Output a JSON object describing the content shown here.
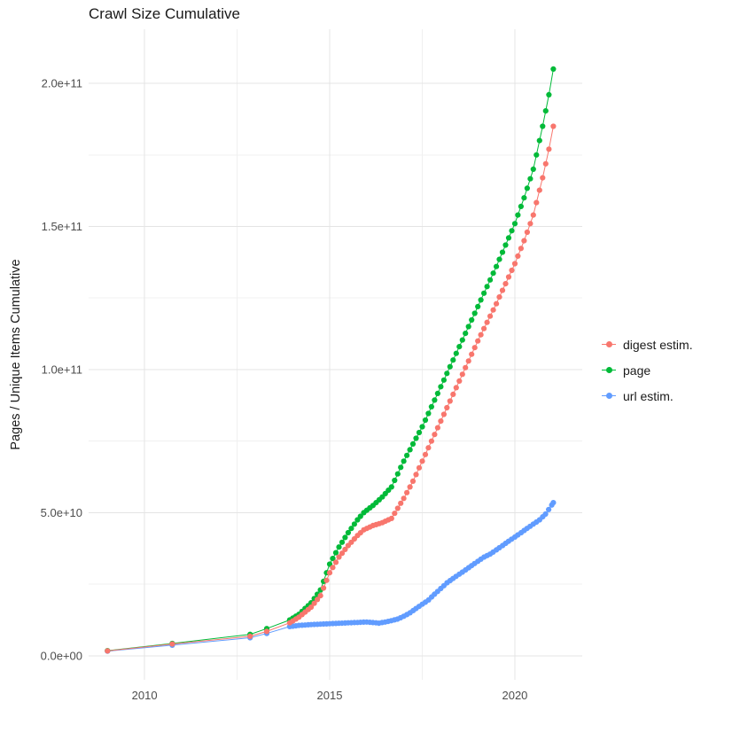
{
  "chart_data": {
    "type": "scatter",
    "title": "Crawl Size Cumulative",
    "xlabel": "",
    "ylabel": "Pages / Unique Items Cumulative",
    "legend_position": "right",
    "grid": "on",
    "value_unit": "1e9 (billions of pages / items)",
    "axis_ranges": {
      "x": [
        2008.49,
        2021.82
      ],
      "y_e9": [
        -8.4,
        218.9
      ]
    },
    "x_ticks": [
      {
        "value": 2010,
        "label": "2010"
      },
      {
        "value": 2015,
        "label": "2015"
      },
      {
        "value": 2020,
        "label": "2020"
      }
    ],
    "y_ticks": [
      {
        "value_e9": 0,
        "label": "0.0e+00"
      },
      {
        "value_e9": 50,
        "label": "5.0e+10"
      },
      {
        "value_e9": 100,
        "label": "1.0e+11"
      },
      {
        "value_e9": 150,
        "label": "1.5e+11"
      },
      {
        "value_e9": 200,
        "label": "2.0e+11"
      }
    ],
    "grid_minor": {
      "x": [
        2012.5,
        2017.5
      ],
      "y_e9": [
        25,
        75,
        125,
        175
      ]
    },
    "colors": {
      "grid_major": "#e4e4e4",
      "grid_minor": "#f0f0f0",
      "tick_label": "#4d4d4d"
    },
    "render": {
      "point_step_years": 0.0833,
      "densify_from_year": 2013.9,
      "point_radius": 3.1,
      "line_width": 1
    },
    "series": [
      {
        "label": "digest estim.",
        "color": "#F8766D",
        "points_year_e9": [
          [
            2009.0,
            1.7
          ],
          [
            2010.75,
            4.1
          ],
          [
            2012.85,
            6.8
          ],
          [
            2013.3,
            8.5
          ],
          [
            2013.92,
            11.5
          ],
          [
            2014.17,
            13.5
          ],
          [
            2014.5,
            17
          ],
          [
            2014.75,
            21
          ],
          [
            2015.0,
            29
          ],
          [
            2015.25,
            34.5
          ],
          [
            2015.5,
            38.5
          ],
          [
            2015.75,
            42
          ],
          [
            2015.92,
            44
          ],
          [
            2016.17,
            45.5
          ],
          [
            2016.42,
            46.5
          ],
          [
            2016.67,
            48
          ],
          [
            2017.0,
            55
          ],
          [
            2017.25,
            61
          ],
          [
            2017.5,
            68
          ],
          [
            2017.75,
            75
          ],
          [
            2018.0,
            82
          ],
          [
            2018.25,
            89
          ],
          [
            2018.5,
            96
          ],
          [
            2018.75,
            103
          ],
          [
            2019.0,
            110
          ],
          [
            2019.25,
            116.5
          ],
          [
            2019.5,
            123
          ],
          [
            2019.75,
            130
          ],
          [
            2020.0,
            137
          ],
          [
            2020.25,
            145
          ],
          [
            2020.5,
            154
          ],
          [
            2020.75,
            167
          ],
          [
            2020.92,
            177
          ],
          [
            2021.04,
            185
          ]
        ]
      },
      {
        "label": "page",
        "color": "#00BA38",
        "points_year_e9": [
          [
            2009.0,
            1.8
          ],
          [
            2010.75,
            4.3
          ],
          [
            2012.85,
            7.5
          ],
          [
            2013.3,
            9.5
          ],
          [
            2013.92,
            12.5
          ],
          [
            2014.17,
            14.5
          ],
          [
            2014.5,
            18.5
          ],
          [
            2014.75,
            23
          ],
          [
            2015.0,
            32
          ],
          [
            2015.25,
            38
          ],
          [
            2015.5,
            43
          ],
          [
            2015.75,
            47.5
          ],
          [
            2015.92,
            50
          ],
          [
            2016.17,
            52.5
          ],
          [
            2016.42,
            55.5
          ],
          [
            2016.67,
            59
          ],
          [
            2017.0,
            68
          ],
          [
            2017.25,
            74
          ],
          [
            2017.5,
            80
          ],
          [
            2017.75,
            87
          ],
          [
            2018.0,
            94
          ],
          [
            2018.25,
            101
          ],
          [
            2018.5,
            108
          ],
          [
            2018.75,
            115
          ],
          [
            2019.0,
            122
          ],
          [
            2019.25,
            129
          ],
          [
            2019.5,
            136
          ],
          [
            2019.75,
            143.5
          ],
          [
            2020.0,
            151
          ],
          [
            2020.25,
            160
          ],
          [
            2020.5,
            170
          ],
          [
            2020.75,
            185
          ],
          [
            2020.92,
            196
          ],
          [
            2021.04,
            205
          ]
        ]
      },
      {
        "label": "url estim.",
        "color": "#619CFF",
        "points_year_e9": [
          [
            2009.0,
            1.6
          ],
          [
            2010.75,
            3.7
          ],
          [
            2012.85,
            6.3
          ],
          [
            2013.3,
            7.8
          ],
          [
            2013.92,
            10.2
          ],
          [
            2014.17,
            10.6
          ],
          [
            2014.5,
            10.9
          ],
          [
            2015.0,
            11.2
          ],
          [
            2015.5,
            11.5
          ],
          [
            2016.0,
            11.8
          ],
          [
            2016.33,
            11.4
          ],
          [
            2016.58,
            12.0
          ],
          [
            2016.83,
            12.8
          ],
          [
            2017.0,
            13.8
          ],
          [
            2017.17,
            15
          ],
          [
            2017.33,
            16.5
          ],
          [
            2017.5,
            18
          ],
          [
            2017.67,
            19.5
          ],
          [
            2017.83,
            21.5
          ],
          [
            2018.0,
            23.5
          ],
          [
            2018.17,
            25.5
          ],
          [
            2018.33,
            27
          ],
          [
            2018.5,
            28.5
          ],
          [
            2018.67,
            30
          ],
          [
            2018.83,
            31.5
          ],
          [
            2019.0,
            33
          ],
          [
            2019.17,
            34.5
          ],
          [
            2019.33,
            35.5
          ],
          [
            2019.5,
            37
          ],
          [
            2019.67,
            38.5
          ],
          [
            2019.83,
            40
          ],
          [
            2020.0,
            41.5
          ],
          [
            2020.17,
            43
          ],
          [
            2020.33,
            44.5
          ],
          [
            2020.5,
            46
          ],
          [
            2020.67,
            47.5
          ],
          [
            2020.83,
            49.5
          ],
          [
            2021.04,
            53.5
          ]
        ]
      }
    ]
  }
}
